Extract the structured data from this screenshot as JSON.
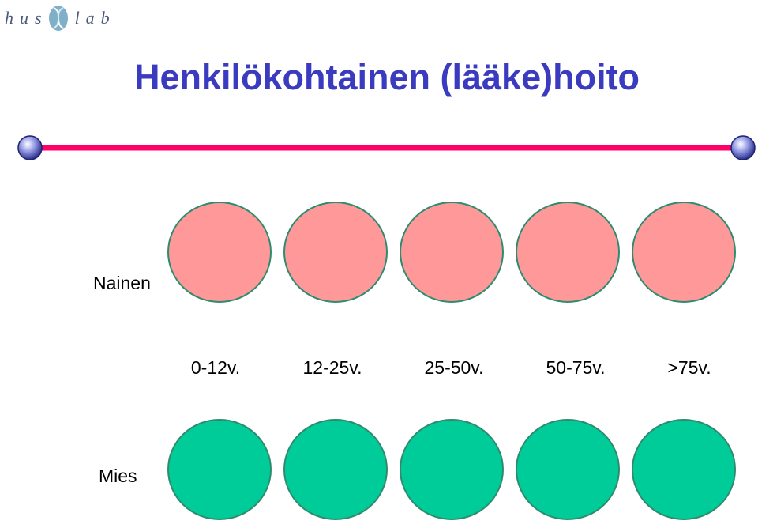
{
  "logo": {
    "left_text": "hus",
    "right_text": "lab"
  },
  "title": "Henkilökohtainen (lääke)hoito",
  "rows": {
    "female_label": "Nainen",
    "male_label": "Mies"
  },
  "age_groups": [
    "0-12v.",
    "12-25v.",
    "25-50v.",
    "50-75v.",
    ">75v."
  ],
  "colors": {
    "title": "#3b3bbf",
    "timeline": "#ff0066",
    "female_circle": "#ff9999",
    "male_circle": "#00cc99",
    "circle_border": "#2e8b6e"
  }
}
